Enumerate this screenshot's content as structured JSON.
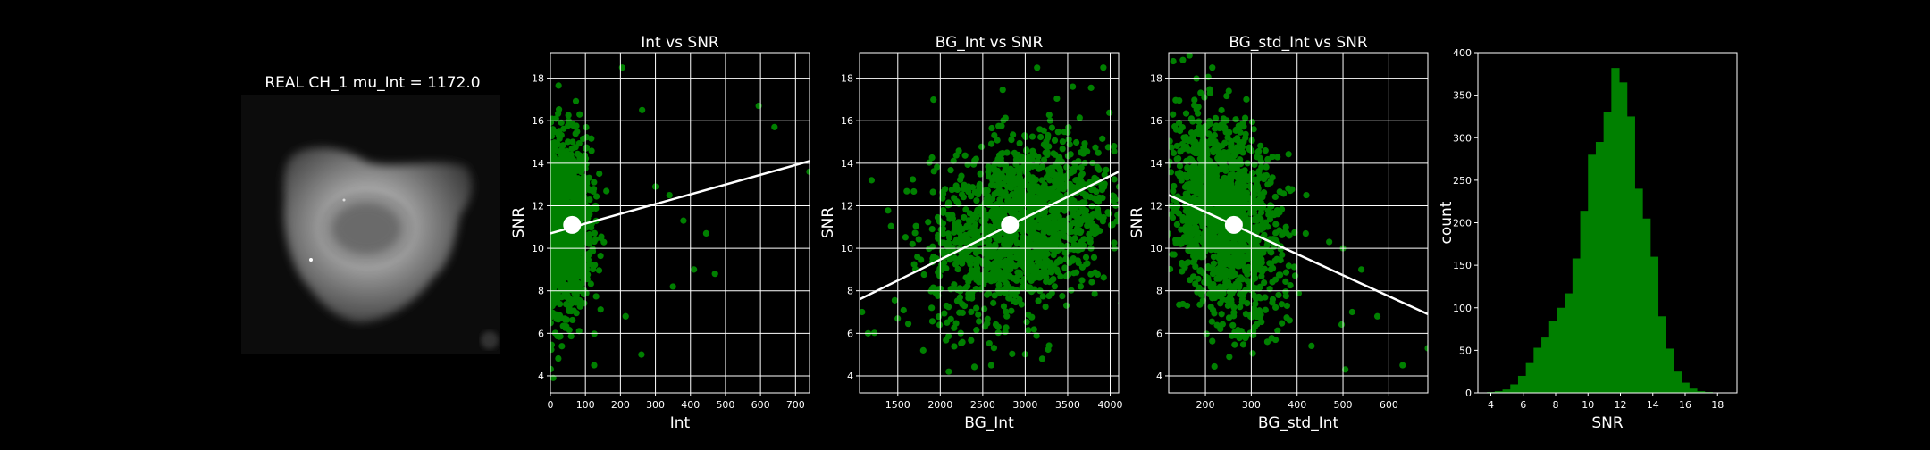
{
  "image_panel": {
    "title": "REAL CH_1 mu_Int = 1172.0"
  },
  "chart_data": [
    {
      "type": "scatter",
      "title": "Int vs SNR",
      "xlabel": "Int",
      "ylabel": "SNR",
      "xlim": [
        0,
        740
      ],
      "ylim": [
        3.2,
        19.2
      ],
      "xticks": [
        0,
        100,
        200,
        300,
        400,
        500,
        600,
        700
      ],
      "yticks": [
        4,
        6,
        8,
        10,
        12,
        14,
        16,
        18
      ],
      "grid": true,
      "point_color": "#008000",
      "cloud": {
        "x_center": 40,
        "x_spread": 38,
        "y_center": 11.1,
        "y_spread": 2.0,
        "n": 1400
      },
      "outliers": [
        [
          205,
          18.5
        ],
        [
          262,
          16.5
        ],
        [
          595,
          16.7
        ],
        [
          640,
          15.7
        ],
        [
          470,
          8.8
        ],
        [
          410,
          9.0
        ],
        [
          740,
          13.6
        ],
        [
          300,
          12.9
        ],
        [
          340,
          12.5
        ],
        [
          380,
          11.3
        ],
        [
          445,
          10.7
        ],
        [
          260,
          5.0
        ],
        [
          215,
          6.8
        ],
        [
          125,
          4.5
        ],
        [
          8,
          3.9
        ],
        [
          350,
          8.2
        ]
      ],
      "fit_line": {
        "x": [
          0,
          740
        ],
        "y": [
          10.7,
          14.1
        ]
      },
      "mean_marker": {
        "x": 62,
        "y": 11.1
      }
    },
    {
      "type": "scatter",
      "title": "BG_Int vs SNR",
      "xlabel": "BG_Int",
      "ylabel": "SNR",
      "xlim": [
        1050,
        4100
      ],
      "ylim": [
        3.2,
        19.2
      ],
      "xticks": [
        1500,
        2000,
        2500,
        3000,
        3500,
        4000
      ],
      "yticks": [
        4,
        6,
        8,
        10,
        12,
        14,
        16,
        18
      ],
      "grid": true,
      "point_color": "#008000",
      "cloud": {
        "x_center": 2950,
        "x_spread": 520,
        "y_center": 11.1,
        "y_spread": 2.0,
        "n": 1500
      },
      "outliers": [
        [
          3920,
          18.5
        ],
        [
          3560,
          17.6
        ],
        [
          1080,
          7.0
        ],
        [
          1150,
          6.0
        ],
        [
          1800,
          5.2
        ],
        [
          2100,
          4.2
        ],
        [
          2600,
          4.5
        ],
        [
          3200,
          4.8
        ],
        [
          3900,
          12.9
        ],
        [
          4050,
          10.0
        ]
      ],
      "fit_line": {
        "x": [
          1050,
          4100
        ],
        "y": [
          7.6,
          13.6
        ]
      },
      "mean_marker": {
        "x": 2820,
        "y": 11.1
      }
    },
    {
      "type": "scatter",
      "title": "BG_std_Int vs SNR",
      "xlabel": "BG_std_Int",
      "ylabel": "SNR",
      "xlim": [
        120,
        685
      ],
      "ylim": [
        3.2,
        19.2
      ],
      "xticks": [
        200,
        300,
        400,
        500,
        600
      ],
      "yticks": [
        4,
        6,
        8,
        10,
        12,
        14,
        16,
        18
      ],
      "grid": true,
      "point_color": "#008000",
      "cloud": {
        "x_center": 240,
        "x_spread": 60,
        "y_center": 11.5,
        "y_spread": 2.2,
        "n": 1500
      },
      "outliers": [
        [
          130,
          18.8
        ],
        [
          215,
          18.5
        ],
        [
          685,
          5.3
        ],
        [
          630,
          4.5
        ],
        [
          575,
          6.8
        ],
        [
          520,
          7.0
        ],
        [
          540,
          9.0
        ],
        [
          500,
          10.0
        ],
        [
          470,
          10.3
        ],
        [
          505,
          4.3
        ],
        [
          420,
          12.5
        ]
      ],
      "fit_line": {
        "x": [
          120,
          685
        ],
        "y": [
          12.5,
          6.9
        ]
      },
      "mean_marker": {
        "x": 262,
        "y": 11.1
      }
    },
    {
      "type": "bar",
      "title": "",
      "xlabel": "SNR",
      "ylabel": "count",
      "xlim": [
        3.2,
        19.2
      ],
      "ylim": [
        0,
        400
      ],
      "xticks": [
        4,
        6,
        8,
        10,
        12,
        14,
        16,
        18
      ],
      "yticks": [
        0,
        50,
        100,
        150,
        200,
        250,
        300,
        350,
        400
      ],
      "bar_color": "#008000",
      "bin_width": 0.48,
      "bin_centers": [
        4.0,
        4.48,
        4.96,
        5.44,
        5.92,
        6.4,
        6.88,
        7.36,
        7.84,
        8.32,
        8.8,
        9.28,
        9.76,
        10.24,
        10.72,
        11.2,
        11.68,
        12.16,
        12.64,
        13.12,
        13.6,
        14.08,
        14.56,
        15.04,
        15.52,
        16.0,
        16.48,
        16.96,
        17.44
      ],
      "values": [
        1,
        2,
        4,
        10,
        20,
        35,
        53,
        65,
        85,
        100,
        117,
        158,
        214,
        280,
        295,
        330,
        382,
        365,
        325,
        240,
        205,
        160,
        90,
        52,
        25,
        12,
        5,
        2,
        1
      ]
    }
  ]
}
